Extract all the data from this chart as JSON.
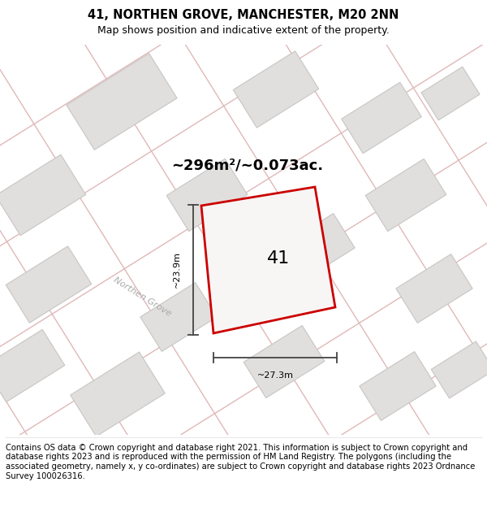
{
  "title": "41, NORTHEN GROVE, MANCHESTER, M20 2NN",
  "subtitle": "Map shows position and indicative extent of the property.",
  "area_label": "~296m²/~0.073ac.",
  "property_number": "41",
  "dim_width": "~27.3m",
  "dim_height": "~23.9m",
  "road_label": "Northen Grove",
  "footer": "Contains OS data © Crown copyright and database right 2021. This information is subject to Crown copyright and database rights 2023 and is reproduced with the permission of HM Land Registry. The polygons (including the associated geometry, namely x, y co-ordinates) are subject to Crown copyright and database rights 2023 Ordnance Survey 100026316.",
  "bg_color": "#ffffff",
  "map_bg": "#f7f6f5",
  "road_fill": "#f0eeec",
  "road_color": "#e0b8b8",
  "building_color": "#e0dfde",
  "building_edge": "#c8c6c4",
  "property_fill": "#f7f6f5",
  "property_edge": "#cc0000",
  "title_fontsize": 10.5,
  "subtitle_fontsize": 9,
  "footer_fontsize": 7.2,
  "area_fontsize": 13,
  "number_fontsize": 16,
  "road_label_fontsize": 8
}
